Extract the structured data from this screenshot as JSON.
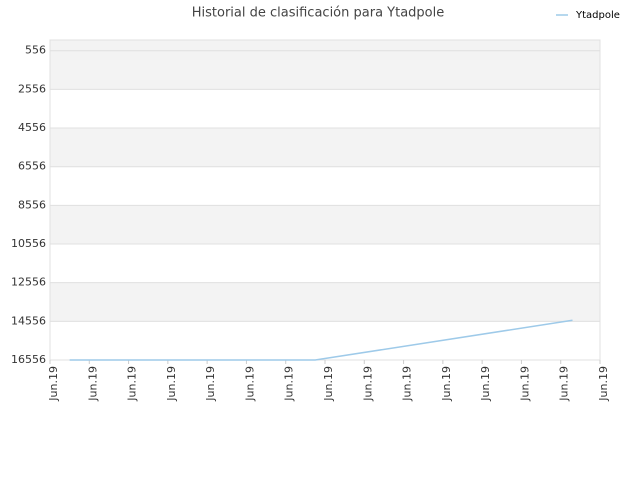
{
  "chart_data": {
    "type": "line",
    "title": "Historial de clasificación para Ytadpole",
    "x": [
      0.5,
      6.75,
      13.3
    ],
    "series": [
      {
        "name": "Ytadpole",
        "color": "#9ecae9",
        "values": [
          16556,
          16556,
          14500
        ]
      }
    ],
    "xlim": [
      0,
      14
    ],
    "xticks": [
      {
        "value": 0,
        "label": "Jun.19"
      },
      {
        "value": 1,
        "label": "Jun.19"
      },
      {
        "value": 2,
        "label": "Jun.19"
      },
      {
        "value": 3,
        "label": "Jun.19"
      },
      {
        "value": 4,
        "label": "Jun.19"
      },
      {
        "value": 5,
        "label": "Jun.19"
      },
      {
        "value": 6,
        "label": "Jun.19"
      },
      {
        "value": 7,
        "label": "Jun.19"
      },
      {
        "value": 8,
        "label": "Jun.19"
      },
      {
        "value": 9,
        "label": "Jun.19"
      },
      {
        "value": 10,
        "label": "Jun.19"
      },
      {
        "value": 11,
        "label": "Jun.19"
      },
      {
        "value": 12,
        "label": "Jun.19"
      },
      {
        "value": 13,
        "label": "Jun.19"
      },
      {
        "value": 14,
        "label": "Jun.19"
      }
    ],
    "ylim": [
      16556,
      0
    ],
    "yticks": [
      16556,
      14556,
      12556,
      10556,
      8556,
      6556,
      4556,
      2556,
      556
    ],
    "grid": true,
    "legend": "top-right"
  }
}
